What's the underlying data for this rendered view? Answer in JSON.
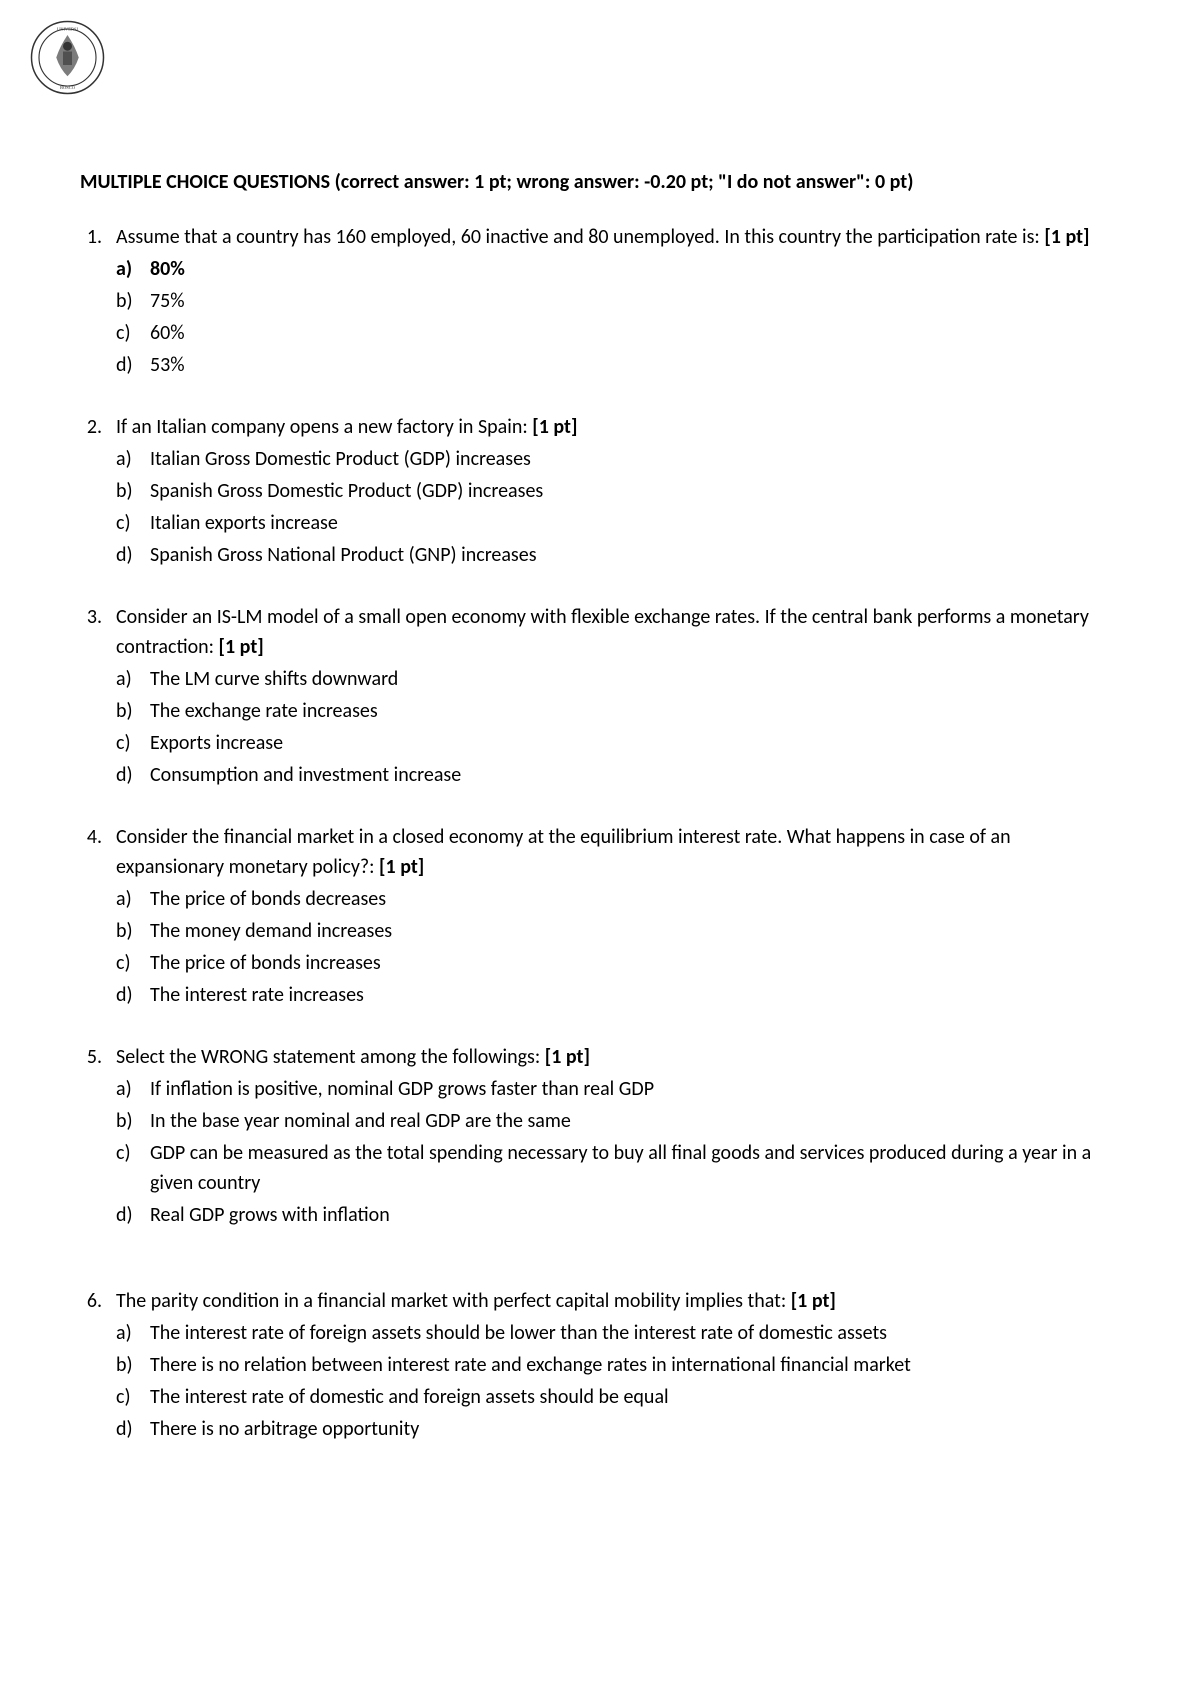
{
  "header": "MULTIPLE CHOICE QUESTIONS (correct answer: 1 pt; wrong answer: -0.20 pt; \"I do not answer\": 0 pt)",
  "questions": [
    {
      "number": "1.",
      "text": "Assume that a country has 160 employed, 60 inactive and 80 unemployed. In this country the participation rate is: ",
      "points": "[1 pt]",
      "options": [
        {
          "letter": "a)",
          "text": "80%",
          "bold": true
        },
        {
          "letter": "b)",
          "text": "75%",
          "bold": false
        },
        {
          "letter": "c)",
          "text": "60%",
          "bold": false
        },
        {
          "letter": "d)",
          "text": "53%",
          "bold": false
        }
      ]
    },
    {
      "number": "2.",
      "text": "If an Italian company opens a new factory in Spain: ",
      "points": "[1 pt]",
      "options": [
        {
          "letter": "a)",
          "text": "Italian Gross Domestic Product (GDP) increases",
          "bold": false
        },
        {
          "letter": "b)",
          "text": "Spanish Gross Domestic Product (GDP) increases",
          "bold": false
        },
        {
          "letter": "c)",
          "text": "Italian exports increase",
          "bold": false
        },
        {
          "letter": "d)",
          "text": "Spanish Gross National Product (GNP) increases",
          "bold": false
        }
      ]
    },
    {
      "number": "3.",
      "text": "Consider an IS-LM model of a small open economy with flexible exchange rates. If the central bank performs a monetary contraction: ",
      "points": "[1 pt]",
      "options": [
        {
          "letter": "a)",
          "text": "The LM curve shifts downward",
          "bold": false
        },
        {
          "letter": "b)",
          "text": "The exchange rate increases",
          "bold": false
        },
        {
          "letter": "c)",
          "text": "Exports increase",
          "bold": false
        },
        {
          "letter": "d)",
          "text": "Consumption and investment increase",
          "bold": false
        }
      ]
    },
    {
      "number": "4.",
      "text": "Consider the financial market in a closed economy at the equilibrium interest rate. What happens in case of an expansionary monetary policy?: ",
      "points": "[1 pt]",
      "options": [
        {
          "letter": "a)",
          "text": "The price of bonds decreases",
          "bold": false
        },
        {
          "letter": "b)",
          "text": "The money demand increases",
          "bold": false
        },
        {
          "letter": "c)",
          "text": "The price of bonds increases",
          "bold": false
        },
        {
          "letter": "d)",
          "text": "The interest rate increases",
          "bold": false
        }
      ]
    },
    {
      "number": "5.",
      "text": "Select the WRONG statement among the followings: ",
      "points": "[1 pt]",
      "options": [
        {
          "letter": "a)",
          "text": "If inflation is positive, nominal GDP grows faster than real GDP",
          "bold": false
        },
        {
          "letter": "b)",
          "text": "In the base year nominal and real GDP are the same",
          "bold": false
        },
        {
          "letter": "c)",
          "text": "GDP can be measured as the total spending necessary to buy all final goods and services produced during a year in a given country",
          "bold": false
        },
        {
          "letter": "d)",
          "text": "Real GDP grows with inflation",
          "bold": false
        }
      ]
    },
    {
      "number": "6.",
      "text": "The parity condition in a financial market with perfect capital mobility implies that: ",
      "points": "[1 pt]",
      "options": [
        {
          "letter": "a)",
          "text": "The interest rate of foreign assets should be lower than the interest rate of domestic assets",
          "bold": false
        },
        {
          "letter": "b)",
          "text": "There is no relation between interest rate and exchange rates in international financial market",
          "bold": false
        },
        {
          "letter": "c)",
          "text": "The interest rate of domestic and foreign assets should be equal",
          "bold": false
        },
        {
          "letter": "d)",
          "text": "There is no arbitrage opportunity",
          "bold": false
        }
      ]
    }
  ]
}
